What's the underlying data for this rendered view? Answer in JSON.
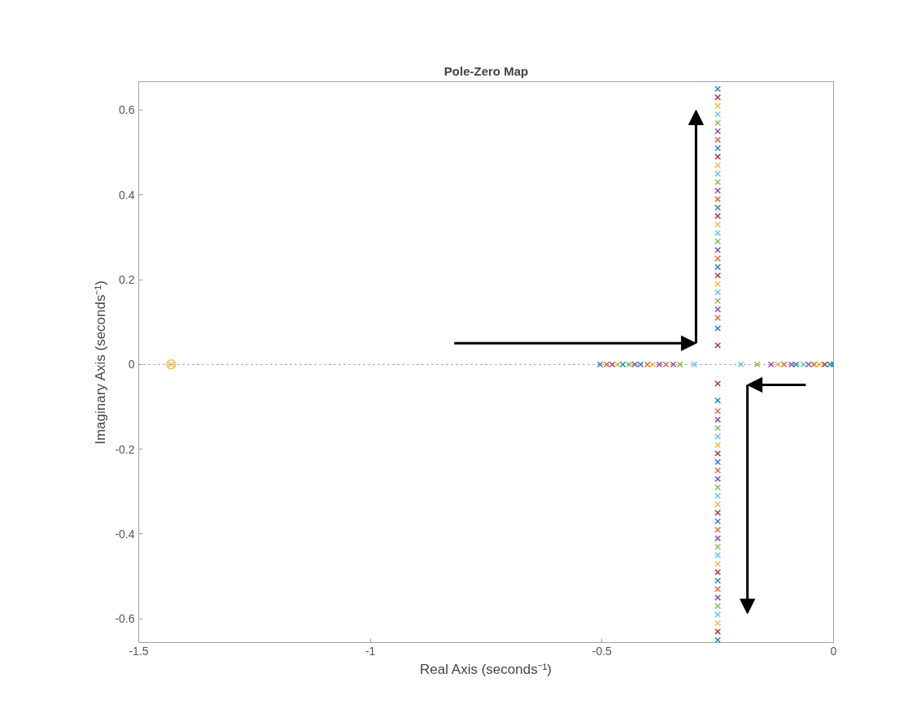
{
  "chart_data": {
    "type": "scatter",
    "title": "Pole-Zero Map",
    "xlabel": "Real Axis (seconds⁻¹)",
    "ylabel": "Imaginary Axis (seconds⁻¹)",
    "xlim": [
      -1.5,
      0
    ],
    "ylim": [
      -0.656,
      0.667
    ],
    "xticks": [
      -1.5,
      -1,
      -0.5,
      0
    ],
    "yticks": [
      -0.6,
      -0.4,
      -0.2,
      0,
      0.2,
      0.4,
      0.6
    ],
    "grid": false,
    "marker": "cross",
    "ref_lines": [
      {
        "axis": "y",
        "value": 0,
        "color": "#808080",
        "line_style": "dotted"
      }
    ],
    "series": [
      {
        "color": "#a2142f",
        "x": [
          -0.25,
          -0.25,
          -0.25,
          -0.25,
          -0.25,
          -0.25,
          -0.25,
          -0.25,
          -0.25,
          -0.25,
          -0.019
        ],
        "values": [
          0.045,
          0.21,
          0.35,
          0.49,
          0.63,
          -0.045,
          -0.21,
          -0.35,
          -0.49,
          -0.63,
          0
        ]
      },
      {
        "color": "#0072bd",
        "x": [
          -0.25,
          -0.25,
          -0.25,
          -0.25,
          -0.25,
          -0.25,
          -0.25,
          -0.25,
          -0.25,
          -0.25,
          -0.504,
          -0.455,
          -0.417,
          -0.081,
          -0.007,
          0
        ],
        "values": [
          0.085,
          0.23,
          0.37,
          0.51,
          0.65,
          -0.085,
          -0.23,
          -0.37,
          -0.51,
          -0.65,
          0,
          0,
          0,
          0,
          0,
          0
        ]
      },
      {
        "color": "#d95319",
        "x": [
          -0.25,
          -0.25,
          -0.25,
          -0.25,
          -0.25,
          -0.25,
          -0.25,
          -0.25,
          -0.49,
          -0.402,
          -0.362,
          -0.107,
          -0.042
        ],
        "values": [
          0.11,
          0.25,
          0.39,
          0.53,
          -0.11,
          -0.25,
          -0.39,
          -0.53,
          0,
          0,
          0,
          0,
          0
        ]
      },
      {
        "color": "#7e2f8e",
        "x": [
          -0.25,
          -0.25,
          -0.25,
          -0.25,
          -0.25,
          -0.25,
          -0.25,
          -0.25,
          -0.478,
          -0.429,
          -0.376,
          -0.346,
          -0.135,
          -0.091,
          -0.054
        ],
        "values": [
          0.13,
          0.27,
          0.41,
          0.55,
          -0.13,
          -0.27,
          -0.41,
          -0.55,
          0,
          0,
          0,
          0,
          0,
          0,
          0
        ]
      },
      {
        "color": "#77ac30",
        "x": [
          -0.25,
          -0.25,
          -0.25,
          -0.25,
          -0.25,
          -0.25,
          -0.25,
          -0.25,
          -0.441,
          -0.332,
          -0.165
        ],
        "values": [
          0.15,
          0.29,
          0.43,
          0.57,
          -0.15,
          -0.29,
          -0.43,
          -0.57,
          0,
          0,
          0
        ]
      },
      {
        "color": "#4dbeee",
        "x": [
          -0.25,
          -0.25,
          -0.25,
          -0.25,
          -0.25,
          -0.25,
          -0.25,
          -0.25,
          -0.301,
          -0.2,
          -0.065
        ],
        "values": [
          0.17,
          0.31,
          0.45,
          0.59,
          -0.17,
          -0.31,
          -0.45,
          -0.59,
          0,
          0,
          0
        ]
      },
      {
        "color": "#edb120",
        "x": [
          -0.25,
          -0.25,
          -0.25,
          -0.25,
          -0.25,
          -0.25,
          -0.25,
          -0.25,
          -0.467,
          -0.39,
          -0.121,
          -0.03,
          -1.43
        ],
        "values": [
          0.19,
          0.33,
          0.47,
          0.61,
          -0.19,
          -0.33,
          -0.47,
          -0.61,
          0,
          0,
          0,
          0,
          0
        ]
      },
      {
        "color": "#f0c040",
        "marker": "circle",
        "x": [
          -1.43
        ],
        "values": [
          0
        ]
      }
    ]
  }
}
